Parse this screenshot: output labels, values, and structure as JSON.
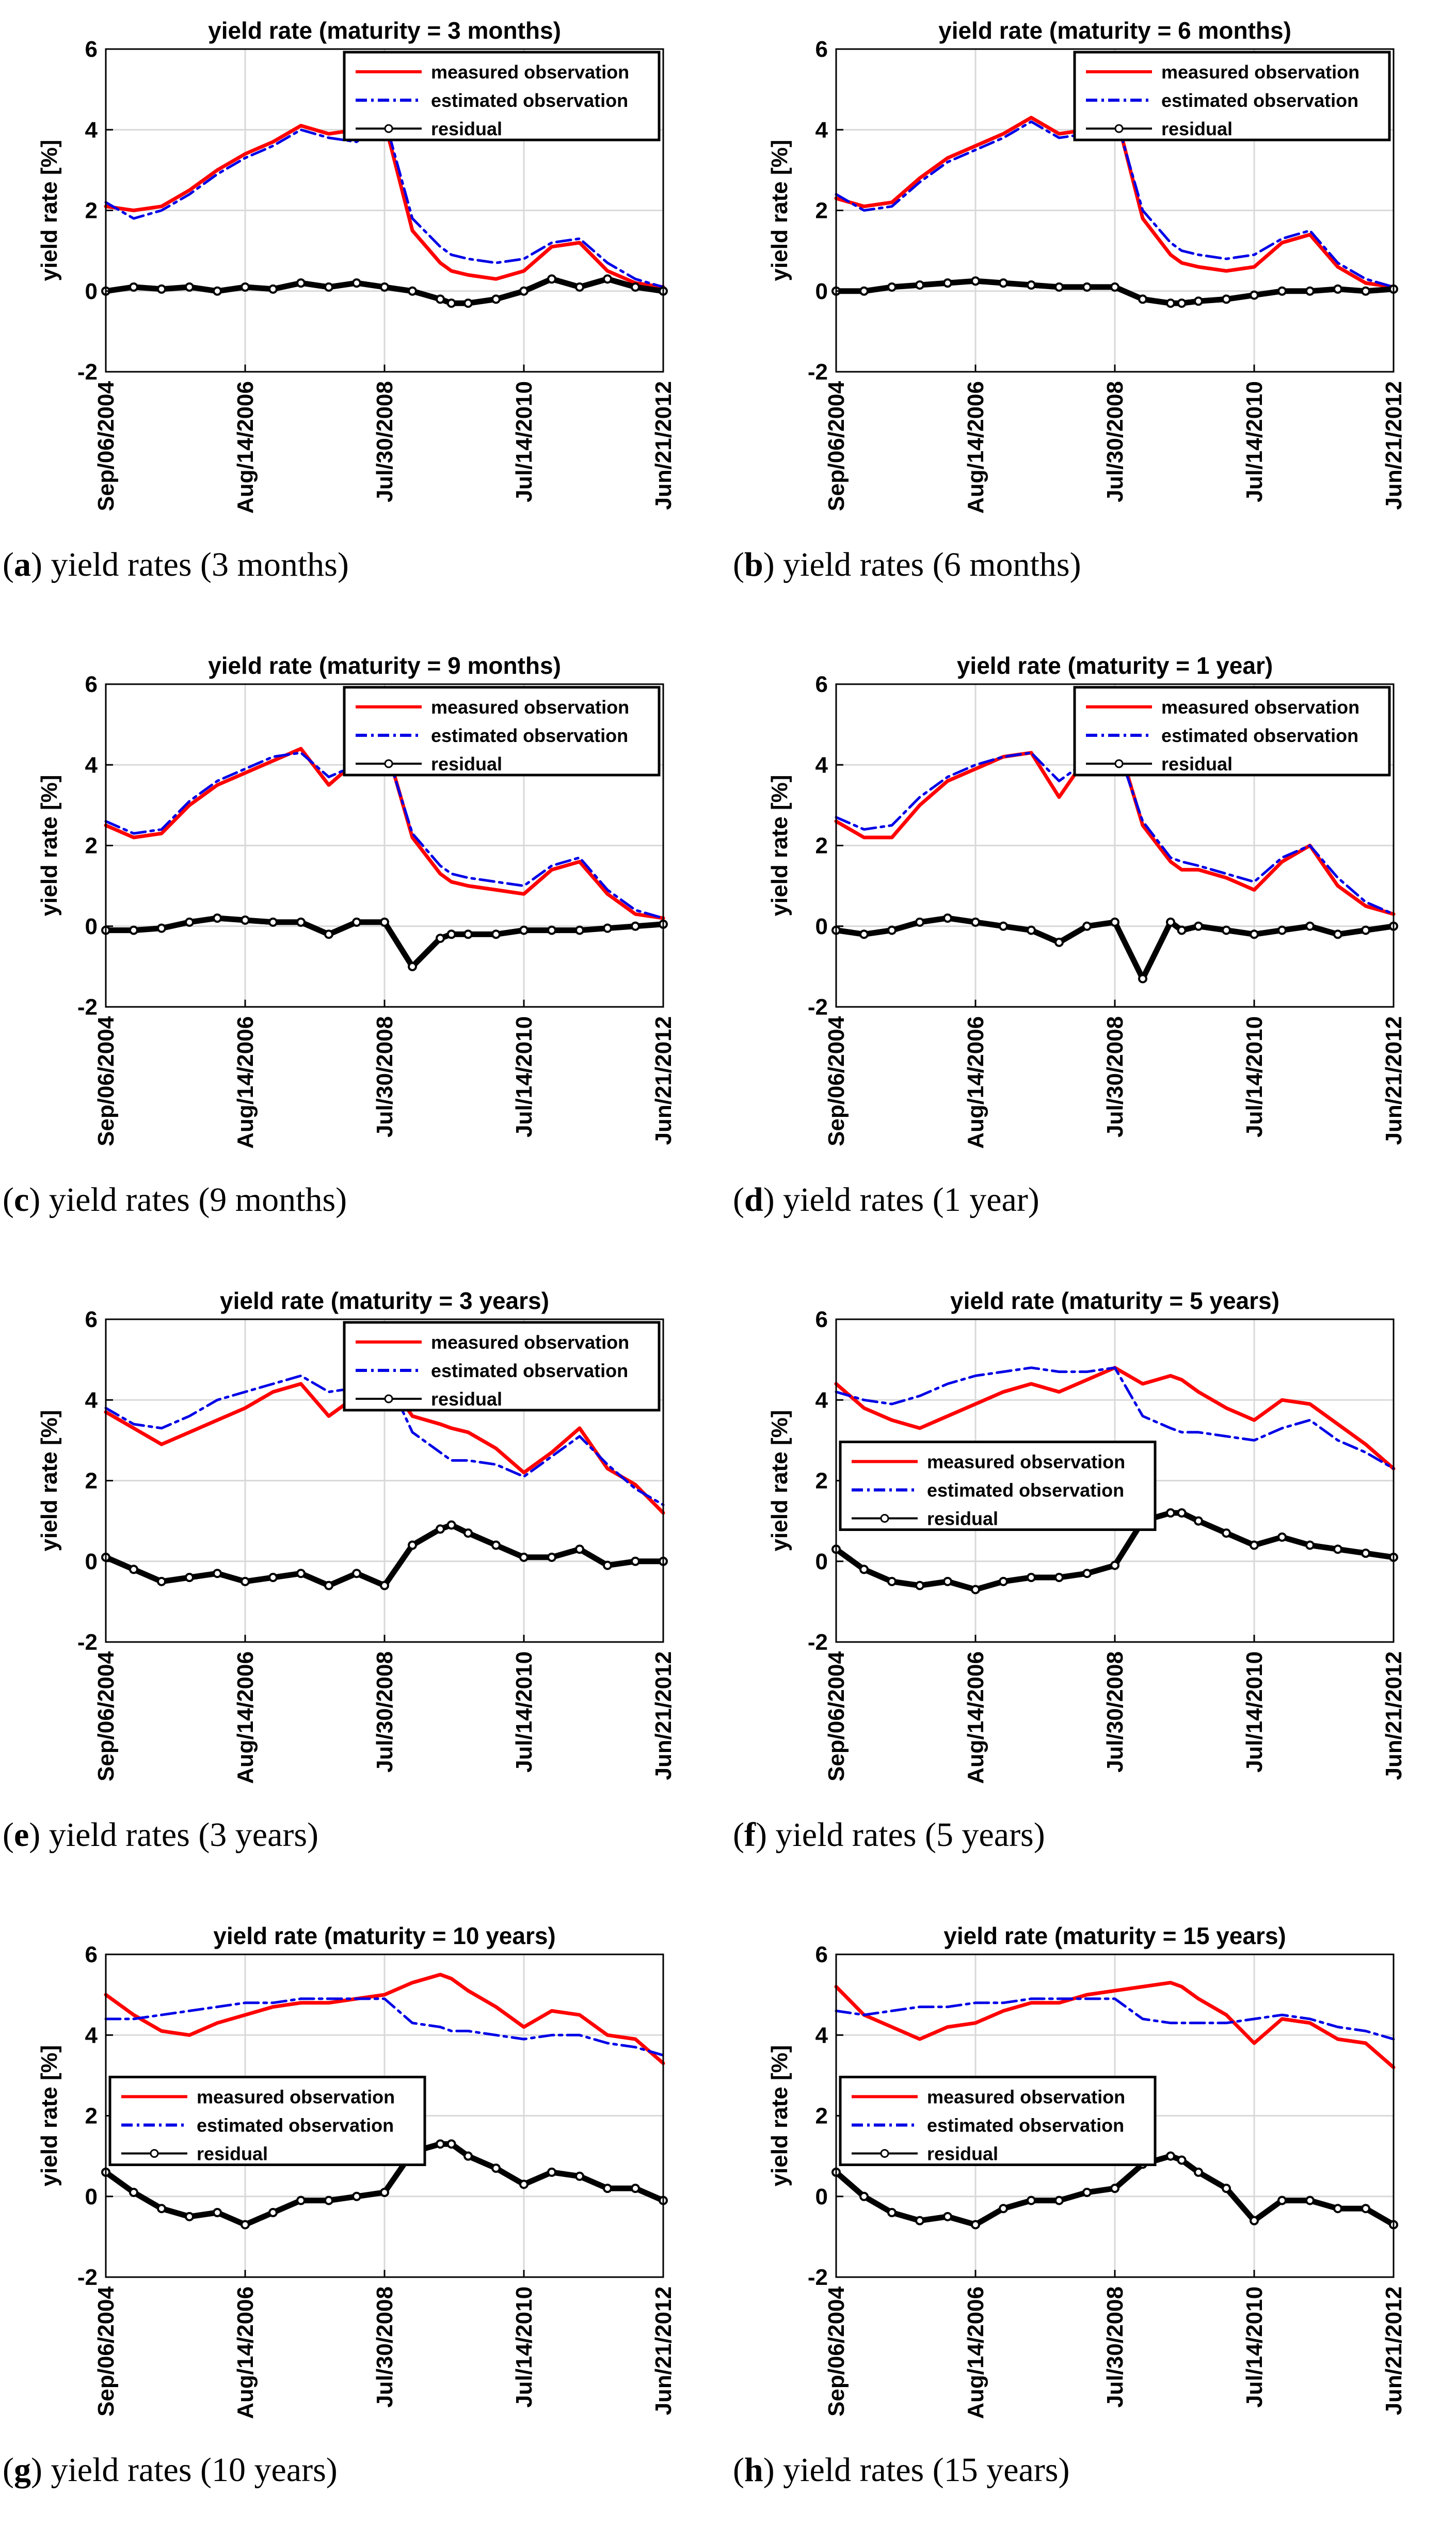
{
  "colors": {
    "measured": "#ff0000",
    "estimated": "#0000e6",
    "residual": "#000000",
    "grid": "#d9d9d9"
  },
  "chart_data": [
    {
      "id": "a",
      "type": "line",
      "title": "yield rate (maturity = 3 months)",
      "ylabel": "yield rate [%]",
      "ylim": [
        -2,
        6
      ],
      "yticks": [
        "6",
        "4",
        "2",
        "0",
        "-2"
      ],
      "xticks": [
        "Sep/06/2004",
        "Aug/14/2006",
        "Jul/30/2008",
        "Jul/14/2010",
        "Jun/21/2012"
      ],
      "legend_pos": "top-right",
      "caption_letter": "a",
      "caption_text": " yield rates (3 months)",
      "x": [
        0,
        0.05,
        0.1,
        0.15,
        0.2,
        0.25,
        0.3,
        0.35,
        0.4,
        0.45,
        0.5,
        0.55,
        0.6,
        0.62,
        0.65,
        0.7,
        0.75,
        0.8,
        0.85,
        0.9,
        0.95,
        1
      ],
      "series": [
        {
          "name": "measured observation",
          "values": [
            2.1,
            2.0,
            2.1,
            2.5,
            3.0,
            3.4,
            3.7,
            4.1,
            3.9,
            4.0,
            4.2,
            1.5,
            0.7,
            0.5,
            0.4,
            0.3,
            0.5,
            1.1,
            1.2,
            0.5,
            0.2,
            0.1
          ]
        },
        {
          "name": "estimated observation",
          "values": [
            2.2,
            1.8,
            2.0,
            2.4,
            2.9,
            3.3,
            3.6,
            4.0,
            3.8,
            3.7,
            4.3,
            1.8,
            1.1,
            0.9,
            0.8,
            0.7,
            0.8,
            1.2,
            1.3,
            0.7,
            0.3,
            0.1
          ]
        },
        {
          "name": "residual",
          "values": [
            0.0,
            0.1,
            0.05,
            0.1,
            0.0,
            0.1,
            0.05,
            0.2,
            0.1,
            0.2,
            0.1,
            0.0,
            -0.2,
            -0.3,
            -0.3,
            -0.2,
            0.0,
            0.3,
            0.1,
            0.3,
            0.1,
            0.0
          ]
        }
      ]
    },
    {
      "id": "b",
      "type": "line",
      "title": "yield rate (maturity = 6 months)",
      "ylabel": "yield rate [%]",
      "ylim": [
        -2,
        6
      ],
      "yticks": [
        "6",
        "4",
        "2",
        "0",
        "-2"
      ],
      "xticks": [
        "Sep/06/2004",
        "Aug/14/2006",
        "Jul/30/2008",
        "Jul/14/2010",
        "Jun/21/2012"
      ],
      "legend_pos": "top-right",
      "caption_letter": "b",
      "caption_text": " yield rates (6 months)",
      "x": [
        0,
        0.05,
        0.1,
        0.15,
        0.2,
        0.25,
        0.3,
        0.35,
        0.4,
        0.45,
        0.5,
        0.55,
        0.6,
        0.62,
        0.65,
        0.7,
        0.75,
        0.8,
        0.85,
        0.9,
        0.95,
        1
      ],
      "series": [
        {
          "name": "measured observation",
          "values": [
            2.3,
            2.1,
            2.2,
            2.8,
            3.3,
            3.6,
            3.9,
            4.3,
            3.9,
            4.0,
            4.5,
            1.8,
            0.9,
            0.7,
            0.6,
            0.5,
            0.6,
            1.2,
            1.4,
            0.6,
            0.2,
            0.1
          ]
        },
        {
          "name": "estimated observation",
          "values": [
            2.4,
            2.0,
            2.1,
            2.7,
            3.2,
            3.5,
            3.8,
            4.2,
            3.8,
            3.9,
            4.4,
            2.0,
            1.2,
            1.0,
            0.9,
            0.8,
            0.9,
            1.3,
            1.5,
            0.7,
            0.3,
            0.1
          ]
        },
        {
          "name": "residual",
          "values": [
            0.0,
            0.0,
            0.1,
            0.15,
            0.2,
            0.25,
            0.2,
            0.15,
            0.1,
            0.1,
            0.1,
            -0.2,
            -0.3,
            -0.3,
            -0.25,
            -0.2,
            -0.1,
            0.0,
            0.0,
            0.05,
            0.0,
            0.05
          ]
        }
      ]
    },
    {
      "id": "c",
      "type": "line",
      "title": "yield rate (maturity = 9 months)",
      "ylabel": "yield rate [%]",
      "ylim": [
        -2,
        6
      ],
      "yticks": [
        "6",
        "4",
        "2",
        "0",
        "-2"
      ],
      "xticks": [
        "Sep/06/2004",
        "Aug/14/2006",
        "Jul/30/2008",
        "Jul/14/2010",
        "Jun/21/2012"
      ],
      "legend_pos": "top-right",
      "caption_letter": "c",
      "caption_text": " yield rates (9 months)",
      "x": [
        0,
        0.05,
        0.1,
        0.15,
        0.2,
        0.25,
        0.3,
        0.35,
        0.4,
        0.45,
        0.5,
        0.55,
        0.6,
        0.62,
        0.65,
        0.7,
        0.75,
        0.8,
        0.85,
        0.9,
        0.95,
        1
      ],
      "series": [
        {
          "name": "measured observation",
          "values": [
            2.5,
            2.2,
            2.3,
            3.0,
            3.5,
            3.8,
            4.1,
            4.4,
            3.5,
            4.1,
            4.6,
            2.2,
            1.3,
            1.1,
            1.0,
            0.9,
            0.8,
            1.4,
            1.6,
            0.8,
            0.3,
            0.2
          ]
        },
        {
          "name": "estimated observation",
          "values": [
            2.6,
            2.3,
            2.4,
            3.1,
            3.6,
            3.9,
            4.2,
            4.3,
            3.7,
            4.0,
            4.5,
            2.3,
            1.5,
            1.3,
            1.2,
            1.1,
            1.0,
            1.5,
            1.7,
            0.9,
            0.4,
            0.2
          ]
        },
        {
          "name": "residual",
          "values": [
            -0.1,
            -0.1,
            -0.05,
            0.1,
            0.2,
            0.15,
            0.1,
            0.1,
            -0.2,
            0.1,
            0.1,
            -1.0,
            -0.3,
            -0.2,
            -0.2,
            -0.2,
            -0.1,
            -0.1,
            -0.1,
            -0.05,
            0.0,
            0.05
          ]
        }
      ]
    },
    {
      "id": "d",
      "type": "line",
      "title": "yield rate (maturity = 1 year)",
      "ylabel": "yield rate [%]",
      "ylim": [
        -2,
        6
      ],
      "yticks": [
        "6",
        "4",
        "2",
        "0",
        "-2"
      ],
      "xticks": [
        "Sep/06/2004",
        "Aug/14/2006",
        "Jul/30/2008",
        "Jul/14/2010",
        "Jun/21/2012"
      ],
      "legend_pos": "top-right",
      "caption_letter": "d",
      "caption_text": " yield rates (1 year)",
      "x": [
        0,
        0.05,
        0.1,
        0.15,
        0.2,
        0.25,
        0.3,
        0.35,
        0.4,
        0.45,
        0.5,
        0.55,
        0.6,
        0.62,
        0.65,
        0.7,
        0.75,
        0.8,
        0.85,
        0.9,
        0.95,
        1
      ],
      "series": [
        {
          "name": "measured observation",
          "values": [
            2.6,
            2.2,
            2.2,
            3.0,
            3.6,
            3.9,
            4.2,
            4.3,
            3.2,
            4.2,
            4.8,
            2.5,
            1.6,
            1.4,
            1.4,
            1.2,
            0.9,
            1.6,
            2.0,
            1.0,
            0.5,
            0.3
          ]
        },
        {
          "name": "estimated observation",
          "values": [
            2.7,
            2.4,
            2.5,
            3.2,
            3.7,
            4.0,
            4.2,
            4.3,
            3.6,
            4.1,
            4.6,
            2.6,
            1.7,
            1.6,
            1.5,
            1.3,
            1.1,
            1.7,
            2.0,
            1.2,
            0.6,
            0.3
          ]
        },
        {
          "name": "residual",
          "values": [
            -0.1,
            -0.2,
            -0.1,
            0.1,
            0.2,
            0.1,
            0.0,
            -0.1,
            -0.4,
            0.0,
            0.1,
            -1.3,
            0.1,
            -0.1,
            0.0,
            -0.1,
            -0.2,
            -0.1,
            0.0,
            -0.2,
            -0.1,
            0.0
          ]
        }
      ]
    },
    {
      "id": "e",
      "type": "line",
      "title": "yield rate (maturity = 3 years)",
      "ylabel": "yield rate [%]",
      "ylim": [
        -2,
        6
      ],
      "yticks": [
        "6",
        "4",
        "2",
        "0",
        "-2"
      ],
      "xticks": [
        "Sep/06/2004",
        "Aug/14/2006",
        "Jul/30/2008",
        "Jul/14/2010",
        "Jun/21/2012"
      ],
      "legend_pos": "top-right",
      "caption_letter": "e",
      "caption_text": " yield rates (3 years)",
      "x": [
        0,
        0.05,
        0.1,
        0.15,
        0.2,
        0.25,
        0.3,
        0.35,
        0.4,
        0.45,
        0.5,
        0.55,
        0.6,
        0.62,
        0.65,
        0.7,
        0.75,
        0.8,
        0.85,
        0.9,
        0.95,
        1
      ],
      "series": [
        {
          "name": "measured observation",
          "values": [
            3.7,
            3.3,
            2.9,
            3.2,
            3.5,
            3.8,
            4.2,
            4.4,
            3.6,
            4.1,
            4.6,
            3.6,
            3.4,
            3.3,
            3.2,
            2.8,
            2.2,
            2.7,
            3.3,
            2.3,
            1.9,
            1.2
          ]
        },
        {
          "name": "estimated observation",
          "values": [
            3.8,
            3.4,
            3.3,
            3.6,
            4.0,
            4.2,
            4.4,
            4.6,
            4.2,
            4.3,
            4.7,
            3.2,
            2.7,
            2.5,
            2.5,
            2.4,
            2.1,
            2.6,
            3.1,
            2.4,
            1.8,
            1.4
          ]
        },
        {
          "name": "residual",
          "values": [
            0.1,
            -0.2,
            -0.5,
            -0.4,
            -0.3,
            -0.5,
            -0.4,
            -0.3,
            -0.6,
            -0.3,
            -0.6,
            0.4,
            0.8,
            0.9,
            0.7,
            0.4,
            0.1,
            0.1,
            0.3,
            -0.1,
            0.0,
            0.0
          ]
        }
      ]
    },
    {
      "id": "f",
      "type": "line",
      "title": "yield rate (maturity = 5 years)",
      "ylabel": "yield rate [%]",
      "ylim": [
        -2,
        6
      ],
      "yticks": [
        "6",
        "4",
        "2",
        "0",
        "-2"
      ],
      "xticks": [
        "Sep/06/2004",
        "Aug/14/2006",
        "Jul/30/2008",
        "Jul/14/2010",
        "Jun/21/2012"
      ],
      "legend_pos": "center-left",
      "caption_letter": "f",
      "caption_text": " yield rates (5 years)",
      "x": [
        0,
        0.05,
        0.1,
        0.15,
        0.2,
        0.25,
        0.3,
        0.35,
        0.4,
        0.45,
        0.5,
        0.55,
        0.6,
        0.62,
        0.65,
        0.7,
        0.75,
        0.8,
        0.85,
        0.9,
        0.95,
        1
      ],
      "series": [
        {
          "name": "measured observation",
          "values": [
            4.4,
            3.8,
            3.5,
            3.3,
            3.6,
            3.9,
            4.2,
            4.4,
            4.2,
            4.5,
            4.8,
            4.4,
            4.6,
            4.5,
            4.2,
            3.8,
            3.5,
            4.0,
            3.9,
            3.4,
            2.9,
            2.3
          ]
        },
        {
          "name": "estimated observation",
          "values": [
            4.2,
            4.0,
            3.9,
            4.1,
            4.4,
            4.6,
            4.7,
            4.8,
            4.7,
            4.7,
            4.8,
            3.6,
            3.3,
            3.2,
            3.2,
            3.1,
            3.0,
            3.3,
            3.5,
            3.0,
            2.7,
            2.3
          ]
        },
        {
          "name": "residual",
          "values": [
            0.3,
            -0.2,
            -0.5,
            -0.6,
            -0.5,
            -0.7,
            -0.5,
            -0.4,
            -0.4,
            -0.3,
            -0.1,
            1.0,
            1.2,
            1.2,
            1.0,
            0.7,
            0.4,
            0.6,
            0.4,
            0.3,
            0.2,
            0.1
          ]
        }
      ]
    },
    {
      "id": "g",
      "type": "line",
      "title": "yield rate (maturity = 10 years)",
      "ylabel": "yield rate [%]",
      "ylim": [
        -2,
        6
      ],
      "yticks": [
        "6",
        "4",
        "2",
        "0",
        "-2"
      ],
      "xticks": [
        "Sep/06/2004",
        "Aug/14/2006",
        "Jul/30/2008",
        "Jul/14/2010",
        "Jun/21/2012"
      ],
      "legend_pos": "center-left",
      "caption_letter": "g",
      "caption_text": " yield rates (10 years)",
      "x": [
        0,
        0.05,
        0.1,
        0.15,
        0.2,
        0.25,
        0.3,
        0.35,
        0.4,
        0.45,
        0.5,
        0.55,
        0.6,
        0.62,
        0.65,
        0.7,
        0.75,
        0.8,
        0.85,
        0.9,
        0.95,
        1
      ],
      "series": [
        {
          "name": "measured observation",
          "values": [
            5.0,
            4.5,
            4.1,
            4.0,
            4.3,
            4.5,
            4.7,
            4.8,
            4.8,
            4.9,
            5.0,
            5.3,
            5.5,
            5.4,
            5.1,
            4.7,
            4.2,
            4.6,
            4.5,
            4.0,
            3.9,
            3.3
          ]
        },
        {
          "name": "estimated observation",
          "values": [
            4.4,
            4.4,
            4.5,
            4.6,
            4.7,
            4.8,
            4.8,
            4.9,
            4.9,
            4.9,
            4.9,
            4.3,
            4.2,
            4.1,
            4.1,
            4.0,
            3.9,
            4.0,
            4.0,
            3.8,
            3.7,
            3.5
          ]
        },
        {
          "name": "residual",
          "values": [
            0.6,
            0.1,
            -0.3,
            -0.5,
            -0.4,
            -0.7,
            -0.4,
            -0.1,
            -0.1,
            0.0,
            0.1,
            1.1,
            1.3,
            1.3,
            1.0,
            0.7,
            0.3,
            0.6,
            0.5,
            0.2,
            0.2,
            -0.1
          ]
        }
      ]
    },
    {
      "id": "h",
      "type": "line",
      "title": "yield rate (maturity = 15 years)",
      "ylabel": "yield rate [%]",
      "ylim": [
        -2,
        6
      ],
      "yticks": [
        "6",
        "4",
        "2",
        "0",
        "-2"
      ],
      "xticks": [
        "Sep/06/2004",
        "Aug/14/2006",
        "Jul/30/2008",
        "Jul/14/2010",
        "Jun/21/2012"
      ],
      "legend_pos": "center-left",
      "caption_letter": "h",
      "caption_text": " yield rates (15 years)",
      "x": [
        0,
        0.05,
        0.1,
        0.15,
        0.2,
        0.25,
        0.3,
        0.35,
        0.4,
        0.45,
        0.5,
        0.55,
        0.6,
        0.62,
        0.65,
        0.7,
        0.75,
        0.8,
        0.85,
        0.9,
        0.95,
        1
      ],
      "series": [
        {
          "name": "measured observation",
          "values": [
            5.2,
            4.5,
            4.2,
            3.9,
            4.2,
            4.3,
            4.6,
            4.8,
            4.8,
            5.0,
            5.1,
            5.2,
            5.3,
            5.2,
            4.9,
            4.5,
            3.8,
            4.4,
            4.3,
            3.9,
            3.8,
            3.2
          ]
        },
        {
          "name": "estimated observation",
          "values": [
            4.6,
            4.5,
            4.6,
            4.7,
            4.7,
            4.8,
            4.8,
            4.9,
            4.9,
            4.9,
            4.9,
            4.4,
            4.3,
            4.3,
            4.3,
            4.3,
            4.4,
            4.5,
            4.4,
            4.2,
            4.1,
            3.9
          ]
        },
        {
          "name": "residual",
          "values": [
            0.6,
            0.0,
            -0.4,
            -0.6,
            -0.5,
            -0.7,
            -0.3,
            -0.1,
            -0.1,
            0.1,
            0.2,
            0.8,
            1.0,
            0.9,
            0.6,
            0.2,
            -0.6,
            -0.1,
            -0.1,
            -0.3,
            -0.3,
            -0.7
          ]
        }
      ]
    }
  ]
}
